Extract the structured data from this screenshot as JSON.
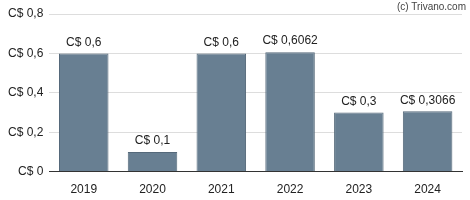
{
  "chart_data": {
    "type": "bar",
    "annotations": [
      "(c) Trivano.com"
    ],
    "categories": [
      "2019",
      "2020",
      "2021",
      "2022",
      "2023",
      "2024"
    ],
    "values": [
      0.6,
      0.1,
      0.6,
      0.6062,
      0.3,
      0.3066
    ],
    "value_labels": [
      "C$ 0,6",
      "C$ 0,1",
      "C$ 0,6",
      "C$ 0,6062",
      "C$ 0,3",
      "C$ 0,3066"
    ],
    "data_labels": true,
    "color": "#687f92",
    "ylim": [
      0,
      0.8
    ],
    "yticks": [
      {
        "value": 0,
        "label": "C$ 0"
      },
      {
        "value": 0.2,
        "label": "C$ 0,2"
      },
      {
        "value": 0.4,
        "label": "C$ 0,4"
      },
      {
        "value": 0.6,
        "label": "C$ 0,6"
      },
      {
        "value": 0.8,
        "label": "C$ 0,8"
      }
    ],
    "grid": true
  }
}
